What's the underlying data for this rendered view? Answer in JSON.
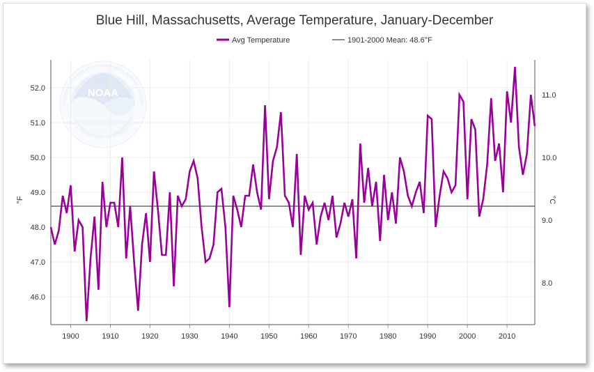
{
  "chart_data": {
    "type": "line",
    "title": "Blue Hill, Massachusetts, Average Temperature, January-December",
    "xlabel": "",
    "ylabel": "°F",
    "y2label": "°C",
    "xlim": [
      1895,
      2017
    ],
    "ylim": [
      45.2,
      52.8
    ],
    "y2lim": [
      7.333,
      11.556
    ],
    "x_ticks": [
      1900,
      1910,
      1920,
      1930,
      1940,
      1950,
      1960,
      1970,
      1980,
      1990,
      2000,
      2010
    ],
    "y_ticks": [
      46.0,
      47.0,
      48.0,
      49.0,
      50.0,
      51.0,
      52.0
    ],
    "y_tick_labels": [
      "46.0",
      "47.0",
      "48.0",
      "49.0",
      "50.0",
      "51.0",
      "52.0"
    ],
    "y2_ticks": [
      8.0,
      9.0,
      10.0,
      11.0
    ],
    "y2_tick_labels": [
      "8.0",
      "9.0",
      "10.0",
      "11.0"
    ],
    "grid": true,
    "legend_position": "top-center",
    "series": [
      {
        "name": "Avg Temperature",
        "color": "#990099",
        "x": [
          1895,
          1896,
          1897,
          1898,
          1899,
          1900,
          1901,
          1902,
          1903,
          1904,
          1905,
          1906,
          1907,
          1908,
          1909,
          1910,
          1911,
          1912,
          1913,
          1914,
          1915,
          1916,
          1917,
          1918,
          1919,
          1920,
          1921,
          1922,
          1923,
          1924,
          1925,
          1926,
          1927,
          1928,
          1929,
          1930,
          1931,
          1932,
          1933,
          1934,
          1935,
          1936,
          1937,
          1938,
          1939,
          1940,
          1941,
          1942,
          1943,
          1944,
          1945,
          1946,
          1947,
          1948,
          1949,
          1950,
          1951,
          1952,
          1953,
          1954,
          1955,
          1956,
          1957,
          1958,
          1959,
          1960,
          1961,
          1962,
          1963,
          1964,
          1965,
          1966,
          1967,
          1968,
          1969,
          1970,
          1971,
          1972,
          1973,
          1974,
          1975,
          1976,
          1977,
          1978,
          1979,
          1980,
          1981,
          1982,
          1983,
          1984,
          1985,
          1986,
          1987,
          1988,
          1989,
          1990,
          1991,
          1992,
          1993,
          1994,
          1995,
          1996,
          1997,
          1998,
          1999,
          2000,
          2001,
          2002,
          2003,
          2004,
          2005,
          2006,
          2007,
          2008,
          2009,
          2010,
          2011,
          2012,
          2013,
          2014,
          2015,
          2016,
          2017
        ],
        "values": [
          48.0,
          47.5,
          47.9,
          48.9,
          48.4,
          49.2,
          47.3,
          48.2,
          48.0,
          45.3,
          47.1,
          48.3,
          46.2,
          49.3,
          48.0,
          48.7,
          48.7,
          48.0,
          50.0,
          47.1,
          48.6,
          47.0,
          45.6,
          47.5,
          48.4,
          47.0,
          49.6,
          48.5,
          47.2,
          47.2,
          49.0,
          46.3,
          48.9,
          48.6,
          48.8,
          49.6,
          49.9,
          49.4,
          48.0,
          47.0,
          47.1,
          47.5,
          49.0,
          49.1,
          48.0,
          45.7,
          48.9,
          48.5,
          48.0,
          48.9,
          48.9,
          49.8,
          49.0,
          48.5,
          51.5,
          48.8,
          49.9,
          50.3,
          51.3,
          48.9,
          48.7,
          48.0,
          50.1,
          47.2,
          48.9,
          48.5,
          48.7,
          47.5,
          48.3,
          48.7,
          48.2,
          48.9,
          47.7,
          48.1,
          48.7,
          48.3,
          48.8,
          47.1,
          50.4,
          48.7,
          49.7,
          48.6,
          49.3,
          47.6,
          49.5,
          48.2,
          49.0,
          48.1,
          50.0,
          49.6,
          48.9,
          48.6,
          49.0,
          49.3,
          48.4,
          51.2,
          51.1,
          48.0,
          48.9,
          49.6,
          49.4,
          49.0,
          49.2,
          51.8,
          51.6,
          48.8,
          51.1,
          50.8,
          48.3,
          48.8,
          49.8,
          51.7,
          49.9,
          50.4,
          49.0,
          51.9,
          51.0,
          52.6,
          50.3,
          49.5,
          50.1,
          51.8,
          50.9
        ]
      },
      {
        "name": "1901-2000 Mean: 48.6°F",
        "color": "#666666",
        "value": 48.6
      }
    ]
  },
  "watermark": {
    "logo_letters": "NOAA",
    "ring_top": "NATIONAL OCEANIC AND ATMOSPHERIC ADMINISTRATION",
    "ring_bottom": "U.S. DEPARTMENT OF COMMERCE"
  }
}
